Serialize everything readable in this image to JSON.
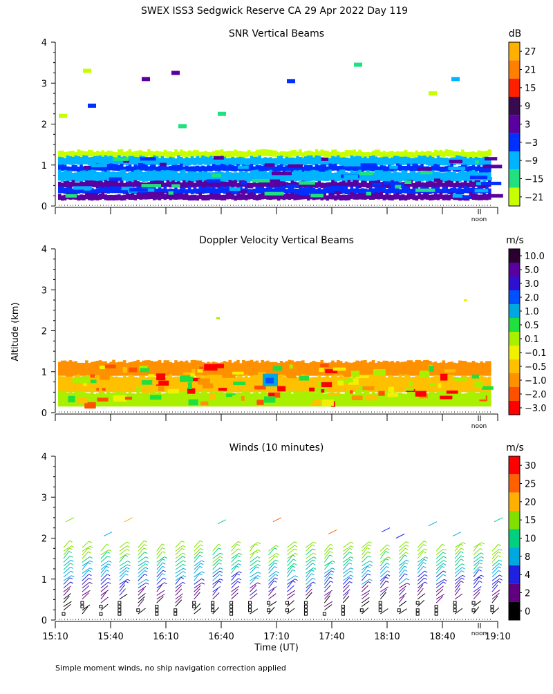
{
  "title": "SWEX ISS3 Sedgwick Reserve CA  29 Apr 2022 Day 119",
  "ylabel": "Altitude (km)",
  "xlabel": "Time (UT)",
  "footnote": "Simple moment winds, no ship navigation correction applied",
  "noon_label": "noon",
  "x_ticks": [
    "15:10",
    "15:40",
    "16:10",
    "16:40",
    "17:10",
    "17:40",
    "18:10",
    "18:40",
    "19:10"
  ],
  "y_ticks": [
    "0",
    "1",
    "2",
    "3",
    "4"
  ],
  "chart_data": [
    {
      "type": "heatmap",
      "title": "SNR Vertical Beams",
      "ylim": [
        0,
        4
      ],
      "colorbar": {
        "unit": "dB",
        "labels": [
          "27",
          "21",
          "15",
          "9",
          "3",
          "−3",
          "−9",
          "−15",
          "−21"
        ],
        "colors": [
          "#ffb000",
          "#ff7f00",
          "#ff2000",
          "#3a0a50",
          "#5a00a0",
          "#0030ff",
          "#00b4ff",
          "#20e080",
          "#c8ff00"
        ]
      },
      "layers": [
        {
          "altitude_km": [
            1.2,
            1.35
          ],
          "snr_db": -21
        },
        {
          "altitude_km": [
            1.0,
            1.2
          ],
          "snr_db": -9
        },
        {
          "altitude_km": [
            0.85,
            1.0
          ],
          "snr_db": -3
        },
        {
          "altitude_km": [
            0.6,
            0.85
          ],
          "snr_db": -9
        },
        {
          "altitude_km": [
            0.45,
            0.6
          ],
          "snr_db": 3
        },
        {
          "altitude_km": [
            0.3,
            0.45
          ],
          "snr_db": -3
        },
        {
          "altitude_km": [
            0.15,
            0.3
          ],
          "snr_db": 3
        }
      ]
    },
    {
      "type": "heatmap",
      "title": "Doppler Velocity Vertical Beams",
      "ylim": [
        0,
        4
      ],
      "colorbar": {
        "unit": "m/s",
        "labels": [
          "10.0",
          "5.0",
          "3.0",
          "2.0",
          "1.0",
          "0.5",
          "0.1",
          "−0.1",
          "−0.5",
          "−1.0",
          "−2.0",
          "−3.0"
        ],
        "colors": [
          "#2a0030",
          "#5a00a0",
          "#3010d0",
          "#0050ff",
          "#00a8e0",
          "#20e040",
          "#a8f000",
          "#f0f000",
          "#ffc000",
          "#ff9000",
          "#ff5000",
          "#ff0000"
        ]
      },
      "layers": [
        {
          "altitude_km": [
            0.9,
            1.25
          ],
          "w_ms": -1.0
        },
        {
          "altitude_km": [
            0.5,
            0.9
          ],
          "w_ms": -0.5
        },
        {
          "altitude_km": [
            0.15,
            0.5
          ],
          "w_ms": 0.1
        }
      ]
    },
    {
      "type": "wind_barbs",
      "title": "Winds (10 minutes)",
      "ylim": [
        0,
        4
      ],
      "colorbar": {
        "unit": "m/s",
        "labels": [
          "30",
          "25",
          "20",
          "15",
          "10",
          "8",
          "4",
          "2",
          "0"
        ],
        "colors": [
          "#ff0000",
          "#ff6000",
          "#ffb000",
          "#80e000",
          "#00d080",
          "#00a8e0",
          "#2020e0",
          "#600080",
          "#000000"
        ]
      },
      "profile_times_count": 24,
      "altitude_range_km": [
        0.15,
        1.8
      ]
    }
  ]
}
